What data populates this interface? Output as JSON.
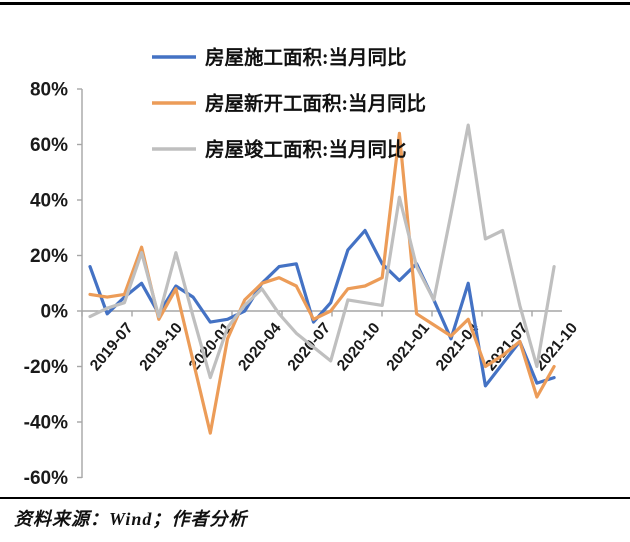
{
  "footer": {
    "source_label": "资料来源：Wind；作者分析"
  },
  "chart_data": {
    "type": "line",
    "title": "",
    "xlabel": "",
    "ylabel": "",
    "ylim": [
      -60,
      80
    ],
    "y_tick_step": 20,
    "y_tick_labels": [
      "80%",
      "60%",
      "40%",
      "20%",
      "0%",
      "-20%",
      "-40%",
      "-60%"
    ],
    "grid": false,
    "legend_position": "top-left-inside",
    "x": [
      "2019-07",
      "2019-08",
      "2019-09",
      "2019-10",
      "2019-11",
      "2019-12",
      "2020-01",
      "2020-02",
      "2020-03",
      "2020-04",
      "2020-05",
      "2020-06",
      "2020-07",
      "2020-08",
      "2020-09",
      "2020-10",
      "2020-11",
      "2020-12",
      "2021-01",
      "2021-02",
      "2021-03",
      "2021-04",
      "2021-05",
      "2021-06",
      "2021-07",
      "2021-08",
      "2021-09",
      "2021-10"
    ],
    "x_label_every": 3,
    "series": [
      {
        "name": "房屋施工面积:当月同比",
        "color": "#4472C4",
        "values": [
          16,
          -1,
          5,
          10,
          -1,
          9,
          5,
          -4,
          -3,
          0,
          10,
          16,
          17,
          -4,
          3,
          22,
          29,
          17,
          11,
          17,
          4,
          -10,
          10,
          -27,
          -19,
          -11,
          -26,
          -24
        ]
      },
      {
        "name": "房屋新开工面积:当月同比",
        "color": "#EC9C58",
        "values": [
          6,
          5,
          6,
          23,
          -3,
          8,
          -18,
          -44,
          -10,
          4,
          10,
          12,
          9,
          -3,
          0,
          8,
          9,
          12,
          64,
          -1,
          -5,
          -9,
          -3,
          -20,
          -16,
          -11,
          -31,
          -20
        ]
      },
      {
        "name": "房屋竣工面积:当月同比",
        "color": "#BFBFBF",
        "values": [
          -2,
          1,
          3,
          21,
          -2,
          21,
          -2,
          -24,
          -6,
          2,
          8,
          -1,
          -8,
          -13,
          -18,
          4,
          3,
          2,
          41,
          16,
          4,
          35,
          67,
          26,
          29,
          2,
          -20,
          16
        ]
      }
    ],
    "axis_color": "#A6A6A6",
    "text_color": "#1a1a1a"
  }
}
